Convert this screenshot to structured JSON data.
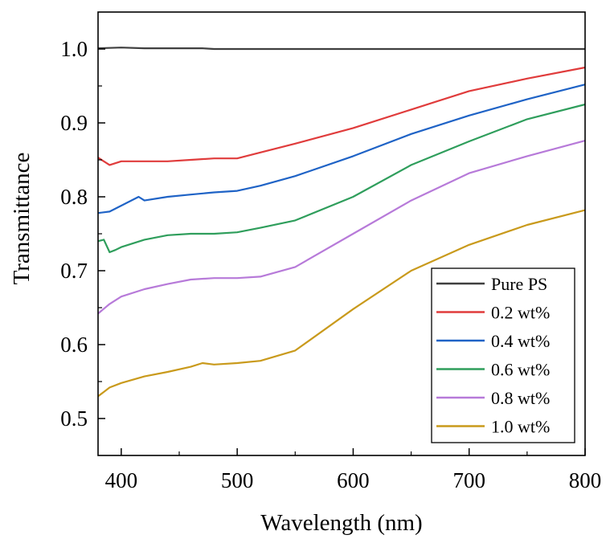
{
  "chart_data": {
    "type": "line",
    "title": "",
    "xlabel": "Wavelength (nm)",
    "ylabel": "Transmittance",
    "xlim": [
      380,
      800
    ],
    "ylim": [
      0.45,
      1.05
    ],
    "x_ticks": [
      400,
      500,
      600,
      700,
      800
    ],
    "x_tick_labels": [
      "400",
      "500",
      "600",
      "700",
      "800"
    ],
    "y_ticks": [
      0.5,
      0.6,
      0.7,
      0.8,
      0.9,
      1.0
    ],
    "y_tick_labels": [
      "0.5",
      "0.6",
      "0.7",
      "0.8",
      "0.9",
      "1.0"
    ],
    "grid": false,
    "legend_position": "bottom-right",
    "series": [
      {
        "name": "Pure PS",
        "color": "#3f3f3f",
        "x": [
          380,
          400,
          420,
          440,
          460,
          470,
          480,
          500,
          550,
          600,
          650,
          700,
          750,
          800
        ],
        "y": [
          1.001,
          1.002,
          1.001,
          1.001,
          1.001,
          1.001,
          1.0,
          1.0,
          1.0,
          1.0,
          1.0,
          1.0,
          1.0,
          1.0
        ]
      },
      {
        "name": "0.2 wt%",
        "color": "#e03c3c",
        "x": [
          380,
          390,
          400,
          420,
          440,
          460,
          480,
          500,
          520,
          550,
          600,
          650,
          700,
          750,
          800
        ],
        "y": [
          0.853,
          0.843,
          0.848,
          0.848,
          0.848,
          0.85,
          0.852,
          0.852,
          0.86,
          0.872,
          0.893,
          0.918,
          0.943,
          0.96,
          0.975
        ]
      },
      {
        "name": "0.4 wt%",
        "color": "#1f63c6",
        "x": [
          380,
          390,
          400,
          415,
          420,
          440,
          460,
          480,
          500,
          520,
          550,
          600,
          650,
          700,
          750,
          800
        ],
        "y": [
          0.778,
          0.78,
          0.788,
          0.8,
          0.795,
          0.8,
          0.803,
          0.806,
          0.808,
          0.815,
          0.828,
          0.855,
          0.885,
          0.91,
          0.932,
          0.952
        ]
      },
      {
        "name": "0.6 wt%",
        "color": "#2f9e5c",
        "x": [
          380,
          385,
          390,
          395,
          400,
          420,
          440,
          460,
          480,
          500,
          520,
          550,
          600,
          650,
          700,
          750,
          800
        ],
        "y": [
          0.74,
          0.742,
          0.725,
          0.728,
          0.732,
          0.742,
          0.748,
          0.75,
          0.75,
          0.752,
          0.758,
          0.768,
          0.8,
          0.843,
          0.875,
          0.905,
          0.925
        ]
      },
      {
        "name": "0.8 wt%",
        "color": "#b77ad9",
        "x": [
          380,
          390,
          400,
          420,
          440,
          460,
          480,
          500,
          520,
          550,
          600,
          650,
          700,
          750,
          800
        ],
        "y": [
          0.642,
          0.655,
          0.665,
          0.675,
          0.682,
          0.688,
          0.69,
          0.69,
          0.692,
          0.705,
          0.75,
          0.795,
          0.832,
          0.855,
          0.876
        ]
      },
      {
        "name": "1.0 wt%",
        "color": "#c99a1c",
        "x": [
          380,
          390,
          400,
          420,
          440,
          460,
          470,
          480,
          500,
          520,
          550,
          600,
          650,
          700,
          750,
          800
        ],
        "y": [
          0.53,
          0.542,
          0.548,
          0.557,
          0.563,
          0.57,
          0.575,
          0.573,
          0.575,
          0.578,
          0.592,
          0.648,
          0.7,
          0.735,
          0.762,
          0.782
        ]
      }
    ]
  }
}
